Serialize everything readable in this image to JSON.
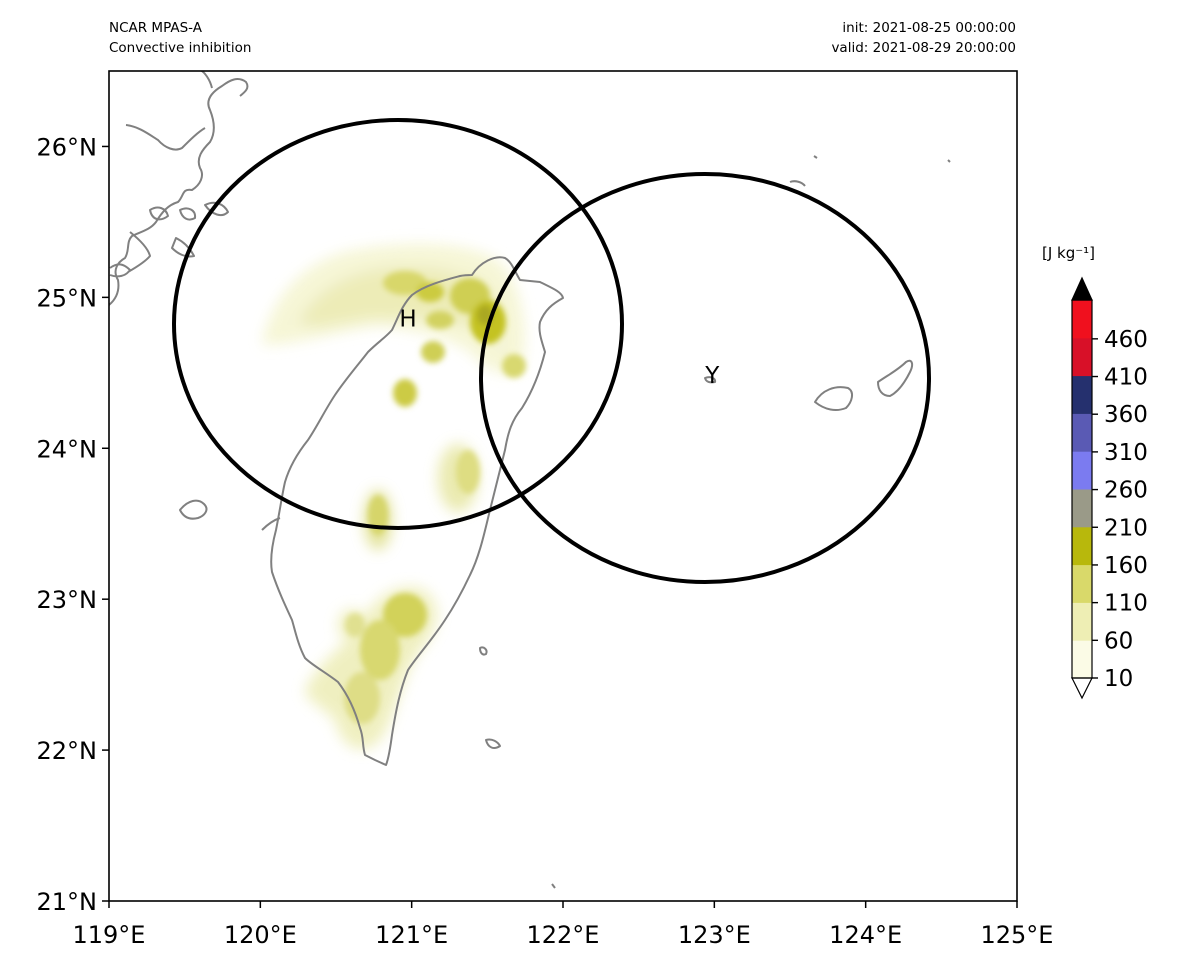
{
  "header": {
    "model": "NCAR MPAS-A",
    "field": "Convective inhibition",
    "init": "init: 2021-08-25 00:00:00",
    "valid": "valid: 2021-08-29 20:00:00"
  },
  "map": {
    "lon_range": [
      119,
      125
    ],
    "lat_range": [
      21,
      26.5
    ],
    "x_ticks": [
      {
        "lon": 119,
        "label": "119°E"
      },
      {
        "lon": 120,
        "label": "120°E"
      },
      {
        "lon": 121,
        "label": "121°E"
      },
      {
        "lon": 122,
        "label": "122°E"
      },
      {
        "lon": 123,
        "label": "123°E"
      },
      {
        "lon": 124,
        "label": "124°E"
      },
      {
        "lon": 125,
        "label": "125°E"
      }
    ],
    "y_ticks": [
      {
        "lat": 21,
        "label": "21°N"
      },
      {
        "lat": 22,
        "label": "22°N"
      },
      {
        "lat": 23,
        "label": "23°N"
      },
      {
        "lat": 24,
        "label": "24°N"
      },
      {
        "lat": 25,
        "label": "25°N"
      },
      {
        "lat": 26,
        "label": "26°N"
      }
    ],
    "radar_sites": [
      {
        "label": "H",
        "lon": 120.91,
        "lat": 24.82,
        "rx_deg": 1.48,
        "ry_deg": 1.34
      },
      {
        "label": "Y",
        "lon": 122.94,
        "lat": 24.46,
        "rx_deg": 1.48,
        "ry_deg": 1.34
      }
    ],
    "coast_color": "#808080"
  },
  "colorbar": {
    "units_label": "[J kg⁻¹]",
    "tick_labels": [
      "10",
      "60",
      "110",
      "160",
      "210",
      "260",
      "310",
      "360",
      "410",
      "460"
    ],
    "levels": [
      10,
      60,
      110,
      160,
      210,
      260,
      310,
      360,
      410,
      460
    ],
    "colors": [
      "#fbfbe6",
      "#eeeeb4",
      "#d9d96a",
      "#b8b80c",
      "#9a9a88",
      "#7b7bf0",
      "#5a5ab4",
      "#25306e",
      "#d81028",
      "#f0101e"
    ],
    "extend_max_color": "#000000",
    "extend_min_color": "#ffffff"
  }
}
